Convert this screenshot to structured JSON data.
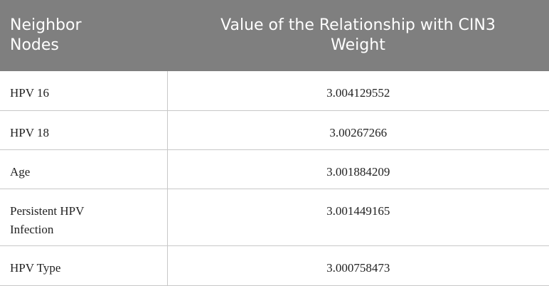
{
  "table": {
    "header": [
      "Neighbor Nodes",
      "Value of the Relationship with CIN3 Weight"
    ],
    "rows": [
      [
        "HPV 16",
        3.004129552
      ],
      [
        "HPV 18",
        3.00267266
      ],
      [
        "Age",
        3.001884209
      ],
      [
        "Persistent HPV Infection",
        3.001449165
      ],
      [
        "HPV Type",
        3.000758473
      ]
    ]
  }
}
